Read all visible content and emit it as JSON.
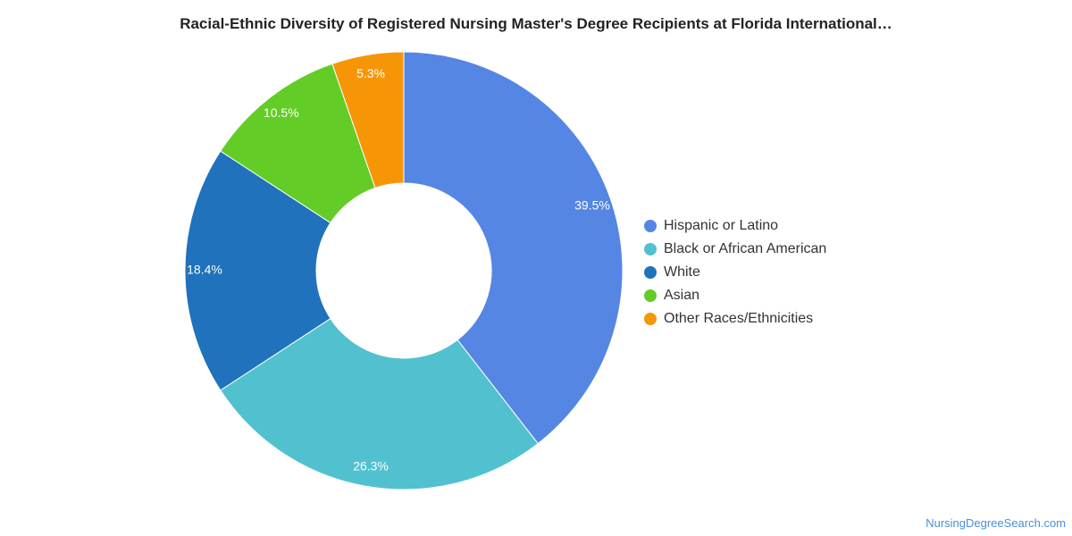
{
  "title": "Racial-Ethnic Diversity of Registered Nursing Master's Degree Recipients at Florida International…",
  "watermark": "NursingDegreeSearch.com",
  "chart_data": {
    "type": "pie",
    "subtype": "donut",
    "title": "Racial-Ethnic Diversity of Registered Nursing Master's Degree Recipients at Florida International…",
    "legend_position": "right",
    "categories": [
      "Hispanic or Latino",
      "Black or African American",
      "White",
      "Asian",
      "Other Races/Ethnicities"
    ],
    "values": [
      39.5,
      26.3,
      18.4,
      10.5,
      5.3
    ],
    "labels": [
      "39.5%",
      "26.3%",
      "18.4%",
      "10.5%",
      "5.3%"
    ],
    "colors": [
      "#5586e3",
      "#51c1cf",
      "#1f72bb",
      "#63cc26",
      "#f69606"
    ]
  }
}
